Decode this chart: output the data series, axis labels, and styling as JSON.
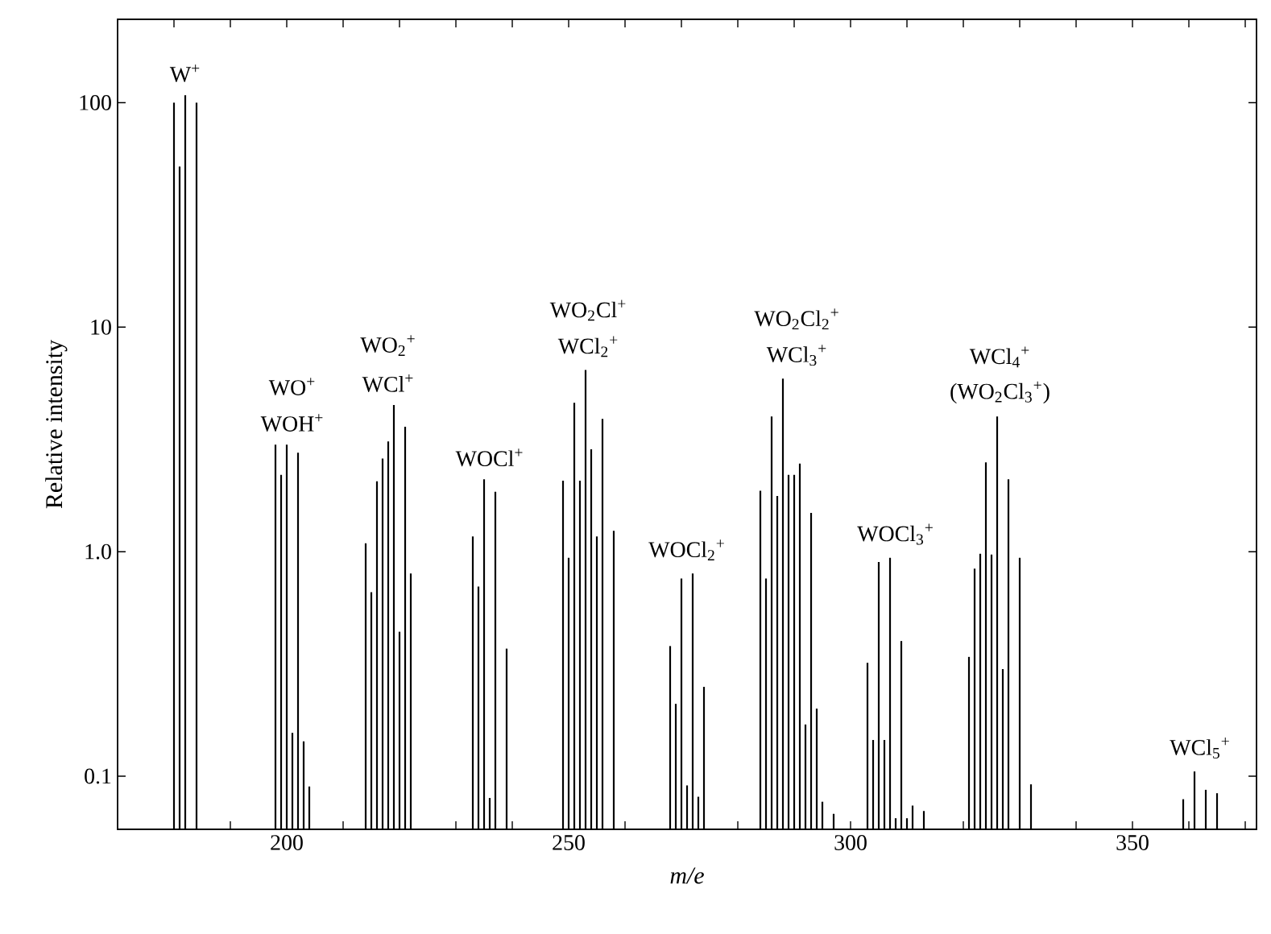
{
  "chart_data": {
    "type": "bar",
    "xlabel": "m/e",
    "ylabel": "Relative intensity",
    "log": "y",
    "color": "#000000",
    "x": [
      180,
      181,
      182,
      184,
      198,
      199,
      200,
      201,
      202,
      203,
      204,
      214,
      215,
      216,
      217,
      218,
      219,
      220,
      221,
      222,
      233,
      234,
      235,
      236,
      237,
      239,
      249,
      250,
      251,
      252,
      253,
      254,
      255,
      256,
      258,
      268,
      269,
      270,
      271,
      272,
      273,
      274,
      284,
      285,
      286,
      287,
      288,
      289,
      290,
      291,
      292,
      293,
      294,
      295,
      297,
      303,
      304,
      305,
      306,
      307,
      308,
      309,
      310,
      311,
      313,
      321,
      322,
      323,
      324,
      325,
      326,
      327,
      328,
      330,
      332,
      359,
      361,
      363,
      365
    ],
    "values": [
      100,
      52,
      108,
      100,
      3.0,
      2.2,
      3.0,
      0.156,
      2.76,
      0.143,
      0.09,
      1.09,
      0.66,
      2.06,
      2.6,
      3.1,
      4.5,
      0.44,
      3.6,
      0.8,
      1.17,
      0.7,
      2.1,
      0.08,
      1.85,
      0.37,
      2.07,
      0.94,
      4.6,
      2.07,
      6.45,
      2.86,
      1.17,
      3.9,
      1.24,
      0.38,
      0.21,
      0.76,
      0.091,
      0.8,
      0.081,
      0.25,
      1.87,
      0.76,
      4.0,
      1.77,
      5.9,
      2.2,
      2.2,
      2.47,
      0.17,
      1.49,
      0.2,
      0.077,
      0.068,
      0.32,
      0.145,
      0.9,
      0.145,
      0.94,
      0.065,
      0.4,
      0.065,
      0.074,
      0.07,
      0.34,
      0.84,
      0.98,
      2.5,
      0.97,
      4.0,
      0.3,
      2.1,
      0.94,
      0.092,
      0.079,
      0.105,
      0.087,
      0.084
    ],
    "xlim": [
      170,
      372
    ],
    "ylim": [
      0.058,
      235
    ],
    "xticks": [
      {
        "value": 180,
        "label": null
      },
      {
        "value": 190,
        "label": null
      },
      200,
      {
        "value": 210,
        "label": null
      },
      {
        "value": 220,
        "label": null
      },
      {
        "value": 230,
        "label": null
      },
      {
        "value": 240,
        "label": null
      },
      250,
      {
        "value": 260,
        "label": null
      },
      {
        "value": 270,
        "label": null
      },
      {
        "value": 280,
        "label": null
      },
      {
        "value": 290,
        "label": null
      },
      300,
      {
        "value": 310,
        "label": null
      },
      {
        "value": 320,
        "label": null
      },
      {
        "value": 330,
        "label": null
      },
      {
        "value": 340,
        "label": null
      },
      350,
      {
        "value": 360,
        "label": null
      },
      {
        "value": 370,
        "label": null
      }
    ],
    "yticks": [
      0.1,
      {
        "value": 1,
        "label": "1.0"
      },
      10,
      100
    ],
    "grid": false,
    "annotations": [
      "W$^{+}$",
      "WO$^{+}$",
      "WOH$^{+}$",
      "WO$_{2}$$^{+}$",
      "WCl$^{+}$",
      "WOCl$^{+}$",
      "WO$_{2}$Cl$^{+}$",
      "WCl$_{2}$$^{+}$",
      "WOCl$_{2}$$^{+}$",
      "WO$_{2}$Cl$_{2}$$^{+}$",
      "WCl$_{3}$$^{+}$",
      "WOCl$_{3}$$^{+}$",
      "WCl$_{4}$$^{+}$",
      "(WO$_{2}$Cl$_{3}$$^{+}$)",
      "WCl$_{5}$$^{+}$"
    ]
  }
}
